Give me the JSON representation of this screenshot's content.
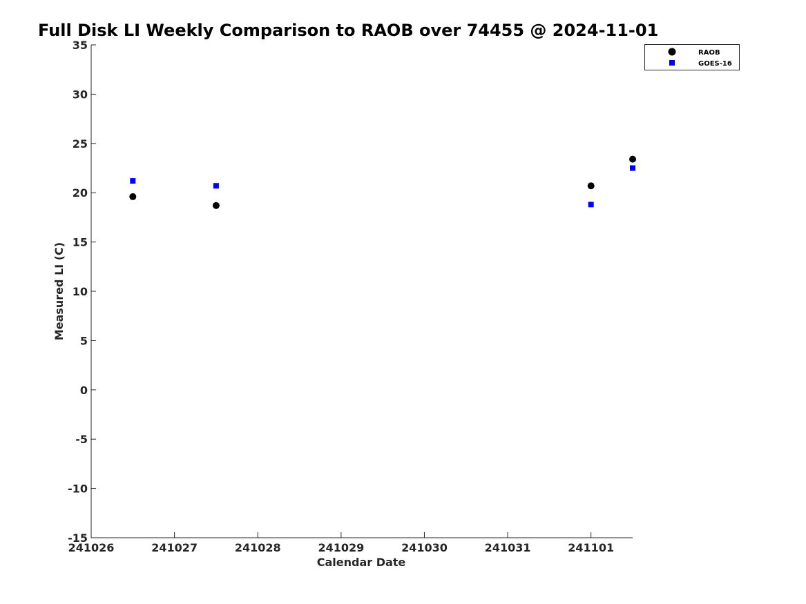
{
  "chart_data": {
    "type": "scatter",
    "title": "Full Disk LI Weekly Comparison to RAOB over 74455 @ 2024-11-01",
    "xlabel": "Calendar Date",
    "ylabel": "Measured LI (C)",
    "xlim": [
      0,
      6.5
    ],
    "ylim": [
      -15,
      35
    ],
    "x_tick_values": [
      0,
      1,
      2,
      3,
      4,
      5,
      6
    ],
    "x_tick_labels": [
      "241026",
      "241027",
      "241028",
      "241029",
      "241030",
      "241031",
      "241101"
    ],
    "y_tick_values": [
      -15,
      -10,
      -5,
      0,
      5,
      10,
      15,
      20,
      25,
      30,
      35
    ],
    "y_tick_labels": [
      "-15",
      "-10",
      "-5",
      "0",
      "5",
      "10",
      "15",
      "20",
      "25",
      "30",
      "35"
    ],
    "grid": false,
    "legend_position": "top-right",
    "series": [
      {
        "name": "RAOB",
        "marker": "circle",
        "color": "#000000",
        "points": [
          {
            "x": 0.5,
            "y": 19.6
          },
          {
            "x": 1.5,
            "y": 18.7
          },
          {
            "x": 6.0,
            "y": 20.7
          },
          {
            "x": 6.5,
            "y": 23.4
          }
        ]
      },
      {
        "name": "GOES-16",
        "marker": "square",
        "color": "#0000ff",
        "points": [
          {
            "x": 0.5,
            "y": 21.2
          },
          {
            "x": 1.5,
            "y": 20.7
          },
          {
            "x": 6.0,
            "y": 18.8
          },
          {
            "x": 6.5,
            "y": 22.5
          }
        ]
      }
    ]
  }
}
